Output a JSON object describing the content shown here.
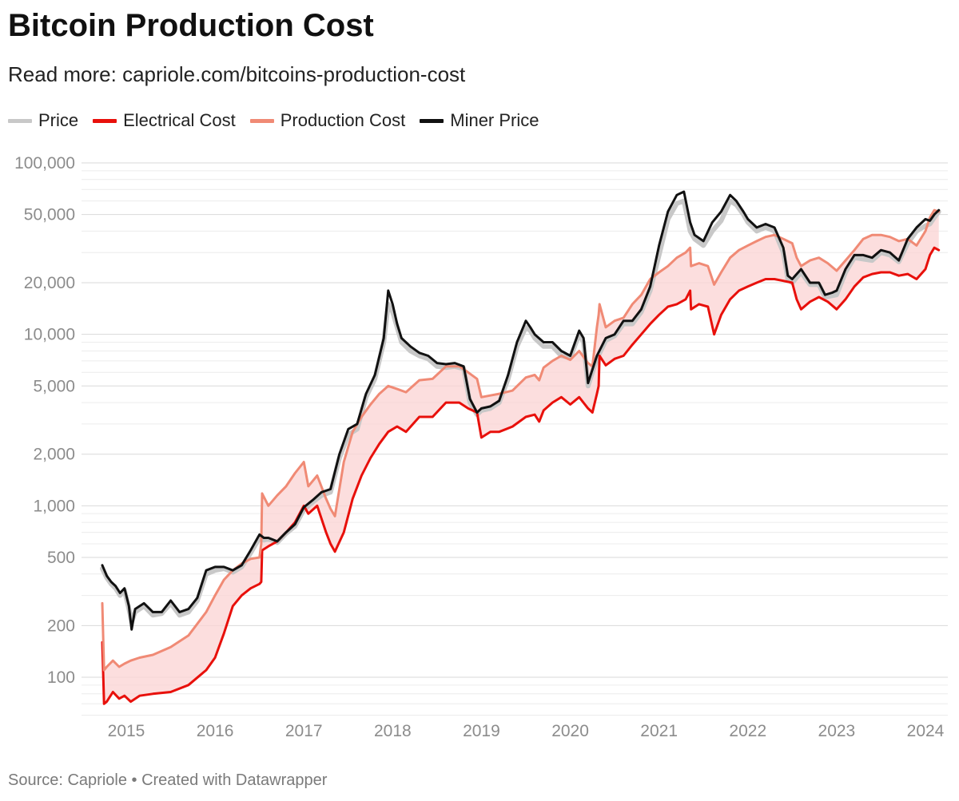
{
  "header": {
    "title": "Bitcoin Production Cost",
    "subtitle": "Read more: capriole.com/bitcoins-production-cost"
  },
  "legend": {
    "items": [
      {
        "label": "Price",
        "color": "#c8c8c8"
      },
      {
        "label": "Electrical Cost",
        "color": "#e8100b"
      },
      {
        "label": "Production Cost",
        "color": "#f08a75"
      },
      {
        "label": "Miner Price",
        "color": "#111111"
      }
    ]
  },
  "footer": {
    "source": "Source: Capriole • Created with Datawrapper"
  },
  "colors": {
    "band_fill": "#fbd3d3",
    "grid": "#e6e6e6"
  },
  "chart_data": {
    "type": "line",
    "title": "Bitcoin Production Cost",
    "y_scale": "log",
    "ylim": [
      60,
      100000
    ],
    "xlim": [
      2014.7,
      2024.2
    ],
    "y_ticks": [
      {
        "value": 100,
        "label": "100"
      },
      {
        "value": 200,
        "label": "200"
      },
      {
        "value": 500,
        "label": "500"
      },
      {
        "value": 1000,
        "label": "1,000"
      },
      {
        "value": 2000,
        "label": "2,000"
      },
      {
        "value": 5000,
        "label": "5,000"
      },
      {
        "value": 10000,
        "label": "10,000"
      },
      {
        "value": 20000,
        "label": "20,000"
      },
      {
        "value": 50000,
        "label": "50,000"
      },
      {
        "value": 100000,
        "label": "100,000"
      }
    ],
    "x_ticks": [
      {
        "value": 2015,
        "label": "2015"
      },
      {
        "value": 2016,
        "label": "2016"
      },
      {
        "value": 2017,
        "label": "2017"
      },
      {
        "value": 2018,
        "label": "2018"
      },
      {
        "value": 2019,
        "label": "2019"
      },
      {
        "value": 2020,
        "label": "2020"
      },
      {
        "value": 2021,
        "label": "2021"
      },
      {
        "value": 2022,
        "label": "2022"
      },
      {
        "value": 2023,
        "label": "2023"
      },
      {
        "value": 2024,
        "label": "2024"
      }
    ],
    "grid": true,
    "legend_position": "top-left",
    "series": [
      {
        "name": "Price",
        "color": "#c8c8c8",
        "x": [
          2014.73,
          2014.78,
          2014.83,
          2014.88,
          2014.93,
          2014.98,
          2015.03,
          2015.06,
          2015.1,
          2015.2,
          2015.3,
          2015.4,
          2015.5,
          2015.6,
          2015.7,
          2015.8,
          2015.9,
          2016.0,
          2016.1,
          2016.2,
          2016.3,
          2016.4,
          2016.5,
          2016.55,
          2016.6,
          2016.7,
          2016.8,
          2016.9,
          2017.0,
          2017.1,
          2017.2,
          2017.3,
          2017.4,
          2017.5,
          2017.6,
          2017.7,
          2017.8,
          2017.9,
          2017.95,
          2018.0,
          2018.05,
          2018.1,
          2018.2,
          2018.3,
          2018.4,
          2018.5,
          2018.6,
          2018.7,
          2018.8,
          2018.87,
          2018.95,
          2019.0,
          2019.1,
          2019.2,
          2019.3,
          2019.4,
          2019.5,
          2019.55,
          2019.6,
          2019.7,
          2019.8,
          2019.9,
          2020.0,
          2020.1,
          2020.15,
          2020.2,
          2020.3,
          2020.4,
          2020.5,
          2020.6,
          2020.7,
          2020.8,
          2020.9,
          2021.0,
          2021.1,
          2021.2,
          2021.28,
          2021.35,
          2021.4,
          2021.5,
          2021.6,
          2021.7,
          2021.8,
          2021.87,
          2021.95,
          2022.0,
          2022.1,
          2022.2,
          2022.3,
          2022.4,
          2022.45,
          2022.5,
          2022.6,
          2022.7,
          2022.8,
          2022.87,
          2022.95,
          2023.0,
          2023.1,
          2023.2,
          2023.3,
          2023.4,
          2023.5,
          2023.6,
          2023.7,
          2023.8,
          2023.9,
          2024.0,
          2024.05,
          2024.1,
          2024.15
        ],
        "values": [
          430,
          380,
          350,
          330,
          300,
          320,
          250,
          210,
          240,
          260,
          230,
          235,
          270,
          230,
          240,
          280,
          400,
          420,
          430,
          410,
          440,
          530,
          650,
          630,
          640,
          610,
          690,
          760,
          950,
          1050,
          1150,
          1200,
          1900,
          2600,
          2800,
          4300,
          5500,
          9000,
          15000,
          13500,
          11000,
          9000,
          8000,
          7500,
          7200,
          6500,
          6400,
          6500,
          6300,
          4000,
          3400,
          3600,
          3700,
          4000,
          5500,
          8500,
          11000,
          10500,
          9500,
          8500,
          8500,
          7500,
          7300,
          10000,
          9000,
          5000,
          7200,
          9200,
          9800,
          11500,
          11500,
          13500,
          18000,
          29000,
          47000,
          58000,
          60000,
          40000,
          36000,
          33000,
          40000,
          46000,
          60000,
          57000,
          50000,
          45000,
          40000,
          42000,
          40000,
          30000,
          21000,
          20000,
          23000,
          19500,
          19500,
          16500,
          16800,
          17000,
          23000,
          28000,
          27500,
          27000,
          30000,
          29000,
          26500,
          34000,
          40000,
          43000,
          44000,
          48000,
          52000
        ]
      },
      {
        "name": "Electrical Cost",
        "color": "#e8100b",
        "x": [
          2014.73,
          2014.75,
          2014.78,
          2014.85,
          2014.92,
          2014.98,
          2015.05,
          2015.15,
          2015.3,
          2015.5,
          2015.7,
          2015.9,
          2016.0,
          2016.1,
          2016.2,
          2016.3,
          2016.4,
          2016.5,
          2016.52,
          2016.53,
          2016.6,
          2016.7,
          2016.8,
          2016.9,
          2017.0,
          2017.05,
          2017.15,
          2017.25,
          2017.3,
          2017.35,
          2017.45,
          2017.55,
          2017.65,
          2017.75,
          2017.85,
          2017.95,
          2018.05,
          2018.15,
          2018.3,
          2018.45,
          2018.6,
          2018.75,
          2018.85,
          2018.95,
          2019.0,
          2019.1,
          2019.2,
          2019.35,
          2019.5,
          2019.6,
          2019.65,
          2019.7,
          2019.8,
          2019.9,
          2020.0,
          2020.1,
          2020.2,
          2020.25,
          2020.3,
          2020.32,
          2020.33,
          2020.4,
          2020.5,
          2020.6,
          2020.7,
          2020.8,
          2020.9,
          2021.0,
          2021.1,
          2021.2,
          2021.3,
          2021.35,
          2021.36,
          2021.45,
          2021.55,
          2021.62,
          2021.7,
          2021.8,
          2021.9,
          2022.0,
          2022.1,
          2022.2,
          2022.3,
          2022.4,
          2022.5,
          2022.55,
          2022.6,
          2022.7,
          2022.8,
          2022.9,
          2023.0,
          2023.1,
          2023.2,
          2023.3,
          2023.4,
          2023.5,
          2023.6,
          2023.7,
          2023.8,
          2023.9,
          2024.0,
          2024.05,
          2024.1,
          2024.15
        ],
        "values": [
          160,
          70,
          72,
          82,
          75,
          78,
          72,
          78,
          80,
          82,
          90,
          110,
          130,
          180,
          260,
          300,
          330,
          350,
          360,
          550,
          580,
          620,
          700,
          800,
          1000,
          900,
          1000,
          700,
          600,
          540,
          700,
          1100,
          1500,
          1900,
          2300,
          2700,
          2900,
          2700,
          3300,
          3300,
          4000,
          4000,
          3700,
          3500,
          2500,
          2700,
          2700,
          2900,
          3300,
          3400,
          3100,
          3600,
          4000,
          4300,
          3900,
          4300,
          3700,
          3500,
          4500,
          5000,
          7500,
          6600,
          7200,
          7500,
          8700,
          10000,
          11500,
          13000,
          14500,
          15000,
          16000,
          18000,
          14000,
          15000,
          14500,
          10000,
          13000,
          16000,
          18000,
          19000,
          20000,
          21000,
          21000,
          20500,
          20000,
          16000,
          14000,
          15500,
          16500,
          15500,
          14000,
          16000,
          19000,
          21500,
          22500,
          23000,
          23000,
          22000,
          22500,
          21000,
          24000,
          29000,
          32000,
          31000
        ]
      },
      {
        "name": "Production Cost",
        "color": "#f08a75",
        "x": [
          2014.73,
          2014.75,
          2014.78,
          2014.85,
          2014.92,
          2014.98,
          2015.05,
          2015.15,
          2015.3,
          2015.5,
          2015.7,
          2015.9,
          2016.0,
          2016.1,
          2016.2,
          2016.3,
          2016.4,
          2016.5,
          2016.52,
          2016.53,
          2016.6,
          2016.7,
          2016.8,
          2016.9,
          2017.0,
          2017.05,
          2017.15,
          2017.25,
          2017.3,
          2017.35,
          2017.45,
          2017.55,
          2017.65,
          2017.75,
          2017.85,
          2017.95,
          2018.05,
          2018.15,
          2018.3,
          2018.45,
          2018.6,
          2018.75,
          2018.85,
          2018.95,
          2019.0,
          2019.1,
          2019.2,
          2019.35,
          2019.5,
          2019.6,
          2019.65,
          2019.7,
          2019.8,
          2019.9,
          2020.0,
          2020.1,
          2020.2,
          2020.25,
          2020.3,
          2020.32,
          2020.33,
          2020.4,
          2020.5,
          2020.6,
          2020.7,
          2020.8,
          2020.9,
          2021.0,
          2021.1,
          2021.2,
          2021.3,
          2021.35,
          2021.36,
          2021.45,
          2021.55,
          2021.62,
          2021.7,
          2021.8,
          2021.9,
          2022.0,
          2022.1,
          2022.2,
          2022.3,
          2022.4,
          2022.5,
          2022.55,
          2022.6,
          2022.7,
          2022.8,
          2022.9,
          2023.0,
          2023.1,
          2023.2,
          2023.3,
          2023.4,
          2023.5,
          2023.6,
          2023.7,
          2023.8,
          2023.9,
          2024.0,
          2024.05,
          2024.1,
          2024.15
        ],
        "values": [
          270,
          110,
          115,
          125,
          115,
          120,
          125,
          130,
          135,
          150,
          175,
          240,
          300,
          370,
          420,
          460,
          490,
          500,
          600,
          1180,
          1000,
          1150,
          1300,
          1550,
          1800,
          1300,
          1500,
          1100,
          960,
          870,
          1800,
          2700,
          3300,
          3900,
          4500,
          5000,
          4800,
          4600,
          5400,
          5500,
          6500,
          6500,
          6000,
          5500,
          4300,
          4400,
          4500,
          4700,
          5600,
          5800,
          5400,
          6400,
          7000,
          7500,
          7100,
          8000,
          6800,
          6500,
          11000,
          13000,
          15000,
          11000,
          12000,
          12500,
          15000,
          17000,
          21000,
          23000,
          25000,
          28000,
          30000,
          32000,
          25000,
          26000,
          25000,
          19500,
          23000,
          28000,
          31000,
          33000,
          35000,
          37000,
          38000,
          36000,
          34000,
          28000,
          25000,
          27000,
          28000,
          26000,
          23500,
          27000,
          31000,
          36000,
          38000,
          38000,
          37000,
          35000,
          36000,
          33000,
          40000,
          48000,
          53000,
          52000
        ]
      },
      {
        "name": "Miner Price",
        "color": "#111111",
        "x": [
          2014.73,
          2014.78,
          2014.83,
          2014.88,
          2014.93,
          2014.98,
          2015.03,
          2015.06,
          2015.1,
          2015.2,
          2015.3,
          2015.4,
          2015.5,
          2015.6,
          2015.7,
          2015.8,
          2015.9,
          2016.0,
          2016.1,
          2016.2,
          2016.3,
          2016.4,
          2016.5,
          2016.55,
          2016.6,
          2016.7,
          2016.8,
          2016.9,
          2017.0,
          2017.1,
          2017.2,
          2017.3,
          2017.4,
          2017.5,
          2017.6,
          2017.7,
          2017.8,
          2017.9,
          2017.95,
          2018.0,
          2018.05,
          2018.1,
          2018.2,
          2018.3,
          2018.4,
          2018.5,
          2018.6,
          2018.7,
          2018.8,
          2018.87,
          2018.95,
          2019.0,
          2019.1,
          2019.2,
          2019.3,
          2019.4,
          2019.5,
          2019.55,
          2019.6,
          2019.7,
          2019.8,
          2019.9,
          2020.0,
          2020.1,
          2020.15,
          2020.2,
          2020.3,
          2020.4,
          2020.5,
          2020.6,
          2020.7,
          2020.8,
          2020.9,
          2021.0,
          2021.1,
          2021.2,
          2021.28,
          2021.35,
          2021.4,
          2021.5,
          2021.6,
          2021.7,
          2021.8,
          2021.87,
          2021.95,
          2022.0,
          2022.1,
          2022.2,
          2022.3,
          2022.4,
          2022.45,
          2022.5,
          2022.6,
          2022.7,
          2022.8,
          2022.87,
          2022.95,
          2023.0,
          2023.1,
          2023.2,
          2023.3,
          2023.4,
          2023.5,
          2023.6,
          2023.7,
          2023.8,
          2023.9,
          2024.0,
          2024.05,
          2024.1,
          2024.15
        ],
        "values": [
          450,
          390,
          360,
          340,
          310,
          330,
          260,
          190,
          250,
          270,
          240,
          240,
          280,
          240,
          250,
          290,
          420,
          440,
          440,
          420,
          450,
          550,
          680,
          650,
          650,
          620,
          700,
          780,
          980,
          1080,
          1200,
          1250,
          2000,
          2800,
          3000,
          4500,
          5800,
          9500,
          18000,
          15000,
          11500,
          9500,
          8500,
          7800,
          7500,
          6800,
          6700,
          6800,
          6500,
          4200,
          3500,
          3700,
          3800,
          4100,
          5800,
          9000,
          12000,
          11000,
          10000,
          9000,
          9000,
          8000,
          7500,
          10500,
          9500,
          5200,
          7500,
          9500,
          10000,
          12000,
          12000,
          14000,
          19000,
          33000,
          52000,
          65000,
          68000,
          45000,
          38000,
          35000,
          45000,
          52000,
          65000,
          60000,
          52000,
          47000,
          42000,
          44000,
          42000,
          32000,
          22000,
          21000,
          24000,
          20000,
          20000,
          17000,
          17500,
          18000,
          24000,
          29000,
          29000,
          28000,
          31000,
          30000,
          27000,
          36000,
          42000,
          47000,
          46000,
          50000,
          53000
        ]
      }
    ]
  }
}
